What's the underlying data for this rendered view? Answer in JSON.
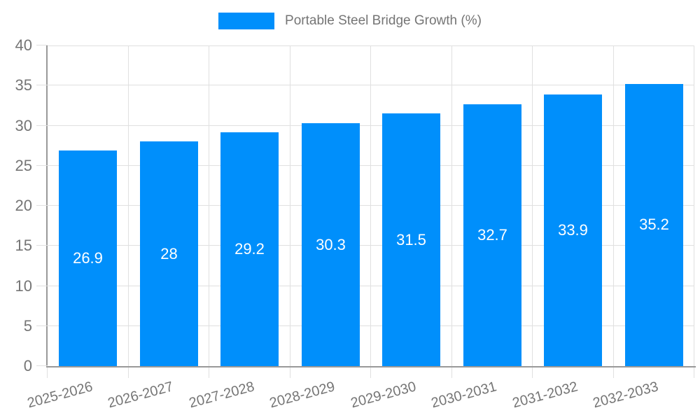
{
  "chart_data": {
    "type": "bar",
    "title": "Portable Steel Bridge Growth (%)",
    "series": [
      {
        "name": "Portable Steel Bridge Growth (%)",
        "values": [
          26.9,
          28,
          29.2,
          30.3,
          31.5,
          32.7,
          33.9,
          35.2
        ]
      }
    ],
    "categories": [
      "2025-2026",
      "2026-2027",
      "2027-2028",
      "2028-2029",
      "2029-2030",
      "2030-2031",
      "2031-2032",
      "2032-2033"
    ],
    "values": [
      26.9,
      28,
      29.2,
      30.3,
      31.5,
      32.7,
      33.9,
      35.2
    ],
    "data_labels": [
      "26.9",
      "28",
      "29.2",
      "30.3",
      "31.5",
      "32.7",
      "33.9",
      "35.2"
    ],
    "xlabel": "",
    "ylabel": "",
    "ylim": [
      0,
      40
    ],
    "yticks": [
      0,
      5,
      10,
      15,
      20,
      25,
      30,
      35,
      40
    ],
    "grid": true,
    "legend_position": "top-center",
    "x_label_rotation_deg": -15,
    "data_label_position": "bar-center",
    "colors": {
      "bar": "#008FFB",
      "grid": "#e0e0e0",
      "axis": "#999999",
      "label": "#757575",
      "data_label": "#ffffff",
      "background": "#ffffff"
    }
  }
}
